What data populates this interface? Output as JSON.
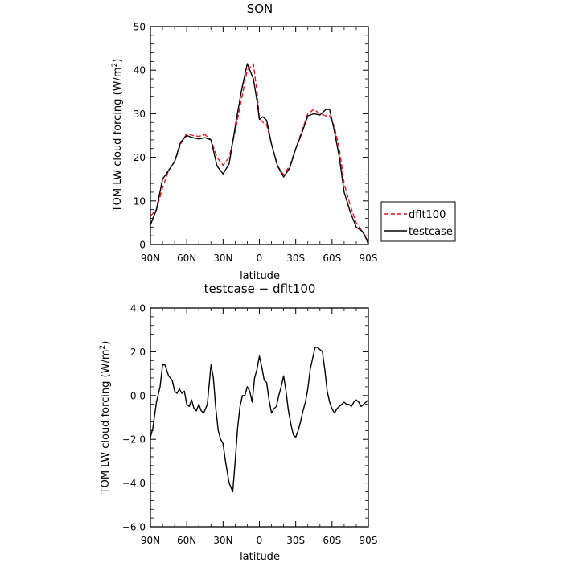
{
  "chart_data": [
    {
      "type": "line",
      "title": "SON",
      "xlabel": "latitude",
      "ylabel": "TOM LW cloud forcing (W/m²)",
      "ylabel_main": "TOM LW cloud forcing (W/m",
      "ylabel_sup": "2",
      "ylabel_close": ")",
      "xlim": [
        90,
        -90
      ],
      "ylim": [
        0,
        50
      ],
      "xticks": [
        90,
        60,
        30,
        0,
        -30,
        -60,
        -90
      ],
      "xtick_labels": [
        "90N",
        "60N",
        "30N",
        "0",
        "30S",
        "60S",
        "90S"
      ],
      "yticks": [
        0,
        10,
        20,
        30,
        40,
        50
      ],
      "ytick_labels": [
        "0",
        "10",
        "20",
        "30",
        "40",
        "50"
      ],
      "legend": {
        "placement": "right",
        "entries": [
          "dflt100",
          "testcase"
        ]
      },
      "series": [
        {
          "name": "dflt100",
          "color": "#e8141e",
          "dash": "dashed",
          "x": [
            90,
            85,
            80,
            75,
            70,
            65,
            60,
            55,
            50,
            45,
            40,
            35,
            30,
            25,
            20,
            15,
            10,
            5,
            2,
            0,
            -3,
            -6,
            -10,
            -15,
            -20,
            -25,
            -30,
            -35,
            -40,
            -45,
            -50,
            -55,
            -58,
            -62,
            -66,
            -70,
            -75,
            -80,
            -85,
            -88,
            -90
          ],
          "y": [
            6.5,
            8,
            13,
            17,
            19,
            23,
            25.5,
            25,
            24.8,
            25.2,
            24,
            20,
            18.2,
            20,
            26,
            33,
            40,
            41.5,
            35,
            29,
            28,
            27.5,
            23,
            18,
            16,
            18,
            22,
            26,
            30,
            31,
            30,
            29.5,
            29.5,
            27,
            22,
            14,
            9,
            5,
            3,
            1.8,
            0.5
          ]
        },
        {
          "name": "testcase",
          "color": "#000000",
          "dash": "solid",
          "x": [
            90,
            85,
            80,
            75,
            70,
            65,
            60,
            55,
            50,
            45,
            40,
            35,
            30,
            25,
            20,
            15,
            10,
            5,
            2,
            0,
            -3,
            -6,
            -10,
            -15,
            -20,
            -25,
            -30,
            -35,
            -40,
            -45,
            -50,
            -55,
            -58,
            -62,
            -66,
            -70,
            -75,
            -80,
            -85,
            -88,
            -90
          ],
          "y": [
            4.5,
            8,
            15,
            17,
            19,
            23.5,
            25,
            24.5,
            24.2,
            24.5,
            24,
            18,
            16.2,
            18.5,
            27,
            35,
            41.5,
            38,
            33,
            28.7,
            29.3,
            28.5,
            23,
            18,
            15.5,
            17.5,
            22,
            25.5,
            29.5,
            30,
            29.7,
            31,
            31,
            26,
            20,
            12,
            7.5,
            4,
            3,
            1.5,
            0
          ]
        }
      ]
    },
    {
      "type": "line",
      "title": "testcase − dflt100",
      "xlabel": "latitude",
      "ylabel": "TOM LW cloud forcing (W/m²)",
      "ylabel_main": "TOM LW cloud forcing (W/m",
      "ylabel_sup": "2",
      "ylabel_close": ")",
      "xlim": [
        90,
        -90
      ],
      "ylim": [
        -6,
        4
      ],
      "xticks": [
        90,
        60,
        30,
        0,
        -30,
        -60,
        -90
      ],
      "xtick_labels": [
        "90N",
        "60N",
        "30N",
        "0",
        "30S",
        "60S",
        "90S"
      ],
      "yticks": [
        -6,
        -4,
        -2,
        0,
        2,
        4
      ],
      "ytick_labels": [
        "−6.0",
        "−4.0",
        "−2.0",
        "0.0",
        "2.0",
        "4.0"
      ],
      "series": [
        {
          "name": "testcase − dflt100",
          "color": "#000000",
          "dash": "solid",
          "x": [
            90,
            88,
            85,
            82,
            80,
            78,
            75,
            72,
            70,
            68,
            66,
            64,
            62,
            60,
            58,
            56,
            54,
            52,
            50,
            48,
            46,
            43,
            40,
            38,
            36,
            34,
            32,
            30,
            28,
            25,
            22,
            20,
            18,
            16,
            14,
            12,
            10,
            8,
            6,
            4,
            2,
            0,
            -2,
            -4,
            -6,
            -8,
            -10,
            -12,
            -14,
            -16,
            -18,
            -20,
            -22,
            -24,
            -26,
            -28,
            -30,
            -32,
            -34,
            -36,
            -38,
            -40,
            -42,
            -44,
            -46,
            -48,
            -50,
            -52,
            -54,
            -56,
            -58,
            -60,
            -62,
            -64,
            -66,
            -68,
            -70,
            -72,
            -74,
            -76,
            -78,
            -80,
            -82,
            -84,
            -86,
            -88,
            -90
          ],
          "y": [
            -1.9,
            -1.5,
            -0.3,
            0.4,
            1.4,
            1.4,
            0.9,
            0.7,
            0.2,
            0.1,
            0.3,
            0.1,
            0.2,
            -0.4,
            -0.5,
            -0.2,
            -0.6,
            -0.7,
            -0.4,
            -0.7,
            -0.8,
            -0.4,
            1.4,
            0.8,
            -0.6,
            -1.6,
            -2.0,
            -2.2,
            -3.0,
            -4.0,
            -4.4,
            -3.0,
            -1.5,
            -0.5,
            0.0,
            0.0,
            0.4,
            0.2,
            -0.3,
            0.8,
            1.2,
            1.8,
            1.3,
            0.7,
            0.6,
            -0.2,
            -0.8,
            -0.6,
            -0.5,
            0.0,
            0.4,
            0.9,
            0.2,
            -0.7,
            -1.3,
            -1.8,
            -1.9,
            -1.6,
            -1.2,
            -0.7,
            -0.3,
            0.3,
            1.2,
            1.7,
            2.2,
            2.2,
            2.1,
            2.0,
            1.2,
            0.2,
            -0.3,
            -0.6,
            -0.8,
            -0.6,
            -0.5,
            -0.4,
            -0.3,
            -0.4,
            -0.4,
            -0.5,
            -0.3,
            -0.2,
            -0.3,
            -0.5,
            -0.4,
            -0.3,
            -0.2
          ]
        }
      ]
    }
  ]
}
